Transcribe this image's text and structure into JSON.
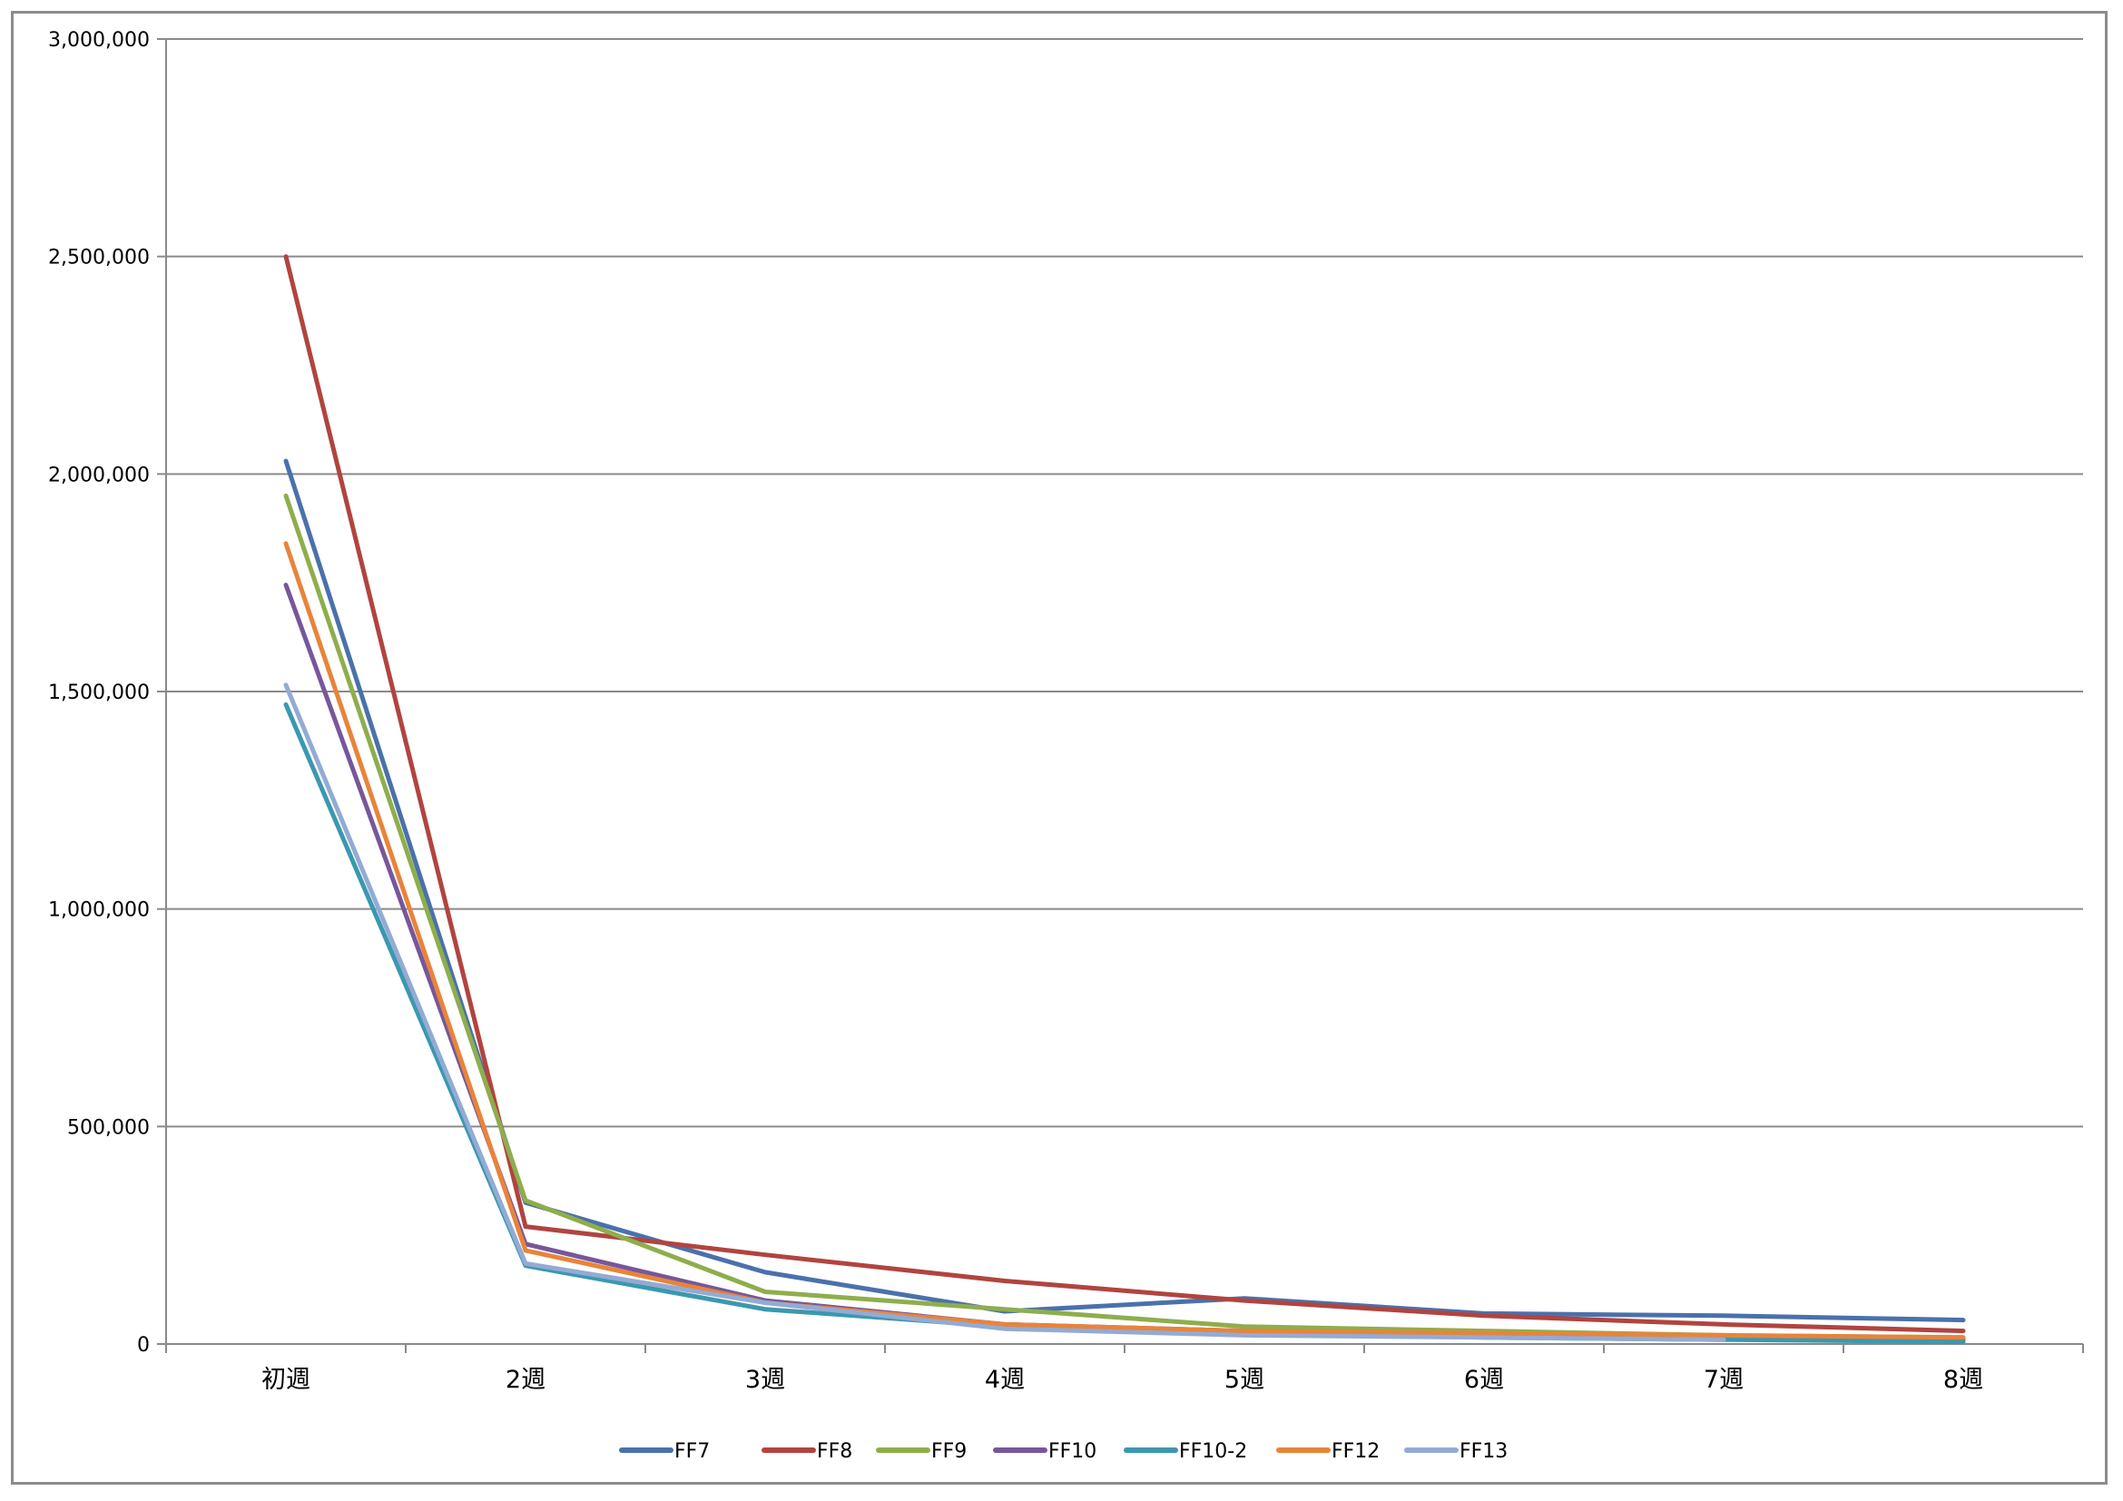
{
  "chart_data": {
    "type": "line",
    "title": "",
    "xlabel": "",
    "ylabel": "",
    "categories": [
      "初週",
      "2週",
      "3週",
      "4週",
      "5週",
      "6週",
      "7週",
      "8週"
    ],
    "ylim": [
      0,
      3000000
    ],
    "yticks": [
      0,
      500000,
      1000000,
      1500000,
      2000000,
      2500000,
      3000000
    ],
    "ytick_labels": [
      "0",
      "500,000",
      "1,000,000",
      "1,500,000",
      "2,000,000",
      "2,500,000",
      "3,000,000"
    ],
    "grid": true,
    "legend_position": "bottom",
    "series": [
      {
        "name": "FF7",
        "color": "#4a71ab",
        "values": [
          2030000,
          325000,
          165000,
          75000,
          105000,
          70000,
          65000,
          55000
        ]
      },
      {
        "name": "FF8",
        "color": "#b1443f",
        "values": [
          2500000,
          270000,
          205000,
          145000,
          100000,
          65000,
          45000,
          30000
        ]
      },
      {
        "name": "FF9",
        "color": "#8eae4c",
        "values": [
          1950000,
          330000,
          120000,
          80000,
          40000,
          30000,
          20000,
          15000
        ]
      },
      {
        "name": "FF10",
        "color": "#77579b",
        "values": [
          1745000,
          230000,
          100000,
          45000,
          30000,
          20000,
          15000,
          10000
        ]
      },
      {
        "name": "FF10-2",
        "color": "#3b98b0",
        "values": [
          1470000,
          180000,
          80000,
          40000,
          25000,
          15000,
          10000,
          5000
        ]
      },
      {
        "name": "FF12",
        "color": "#e8843a",
        "values": [
          1840000,
          215000,
          95000,
          45000,
          30000,
          25000,
          20000,
          15000
        ]
      },
      {
        "name": "FF13",
        "color": "#93abd4",
        "values": [
          1515000,
          185000,
          95000,
          35000,
          20000,
          15000,
          10000,
          null
        ]
      }
    ]
  }
}
